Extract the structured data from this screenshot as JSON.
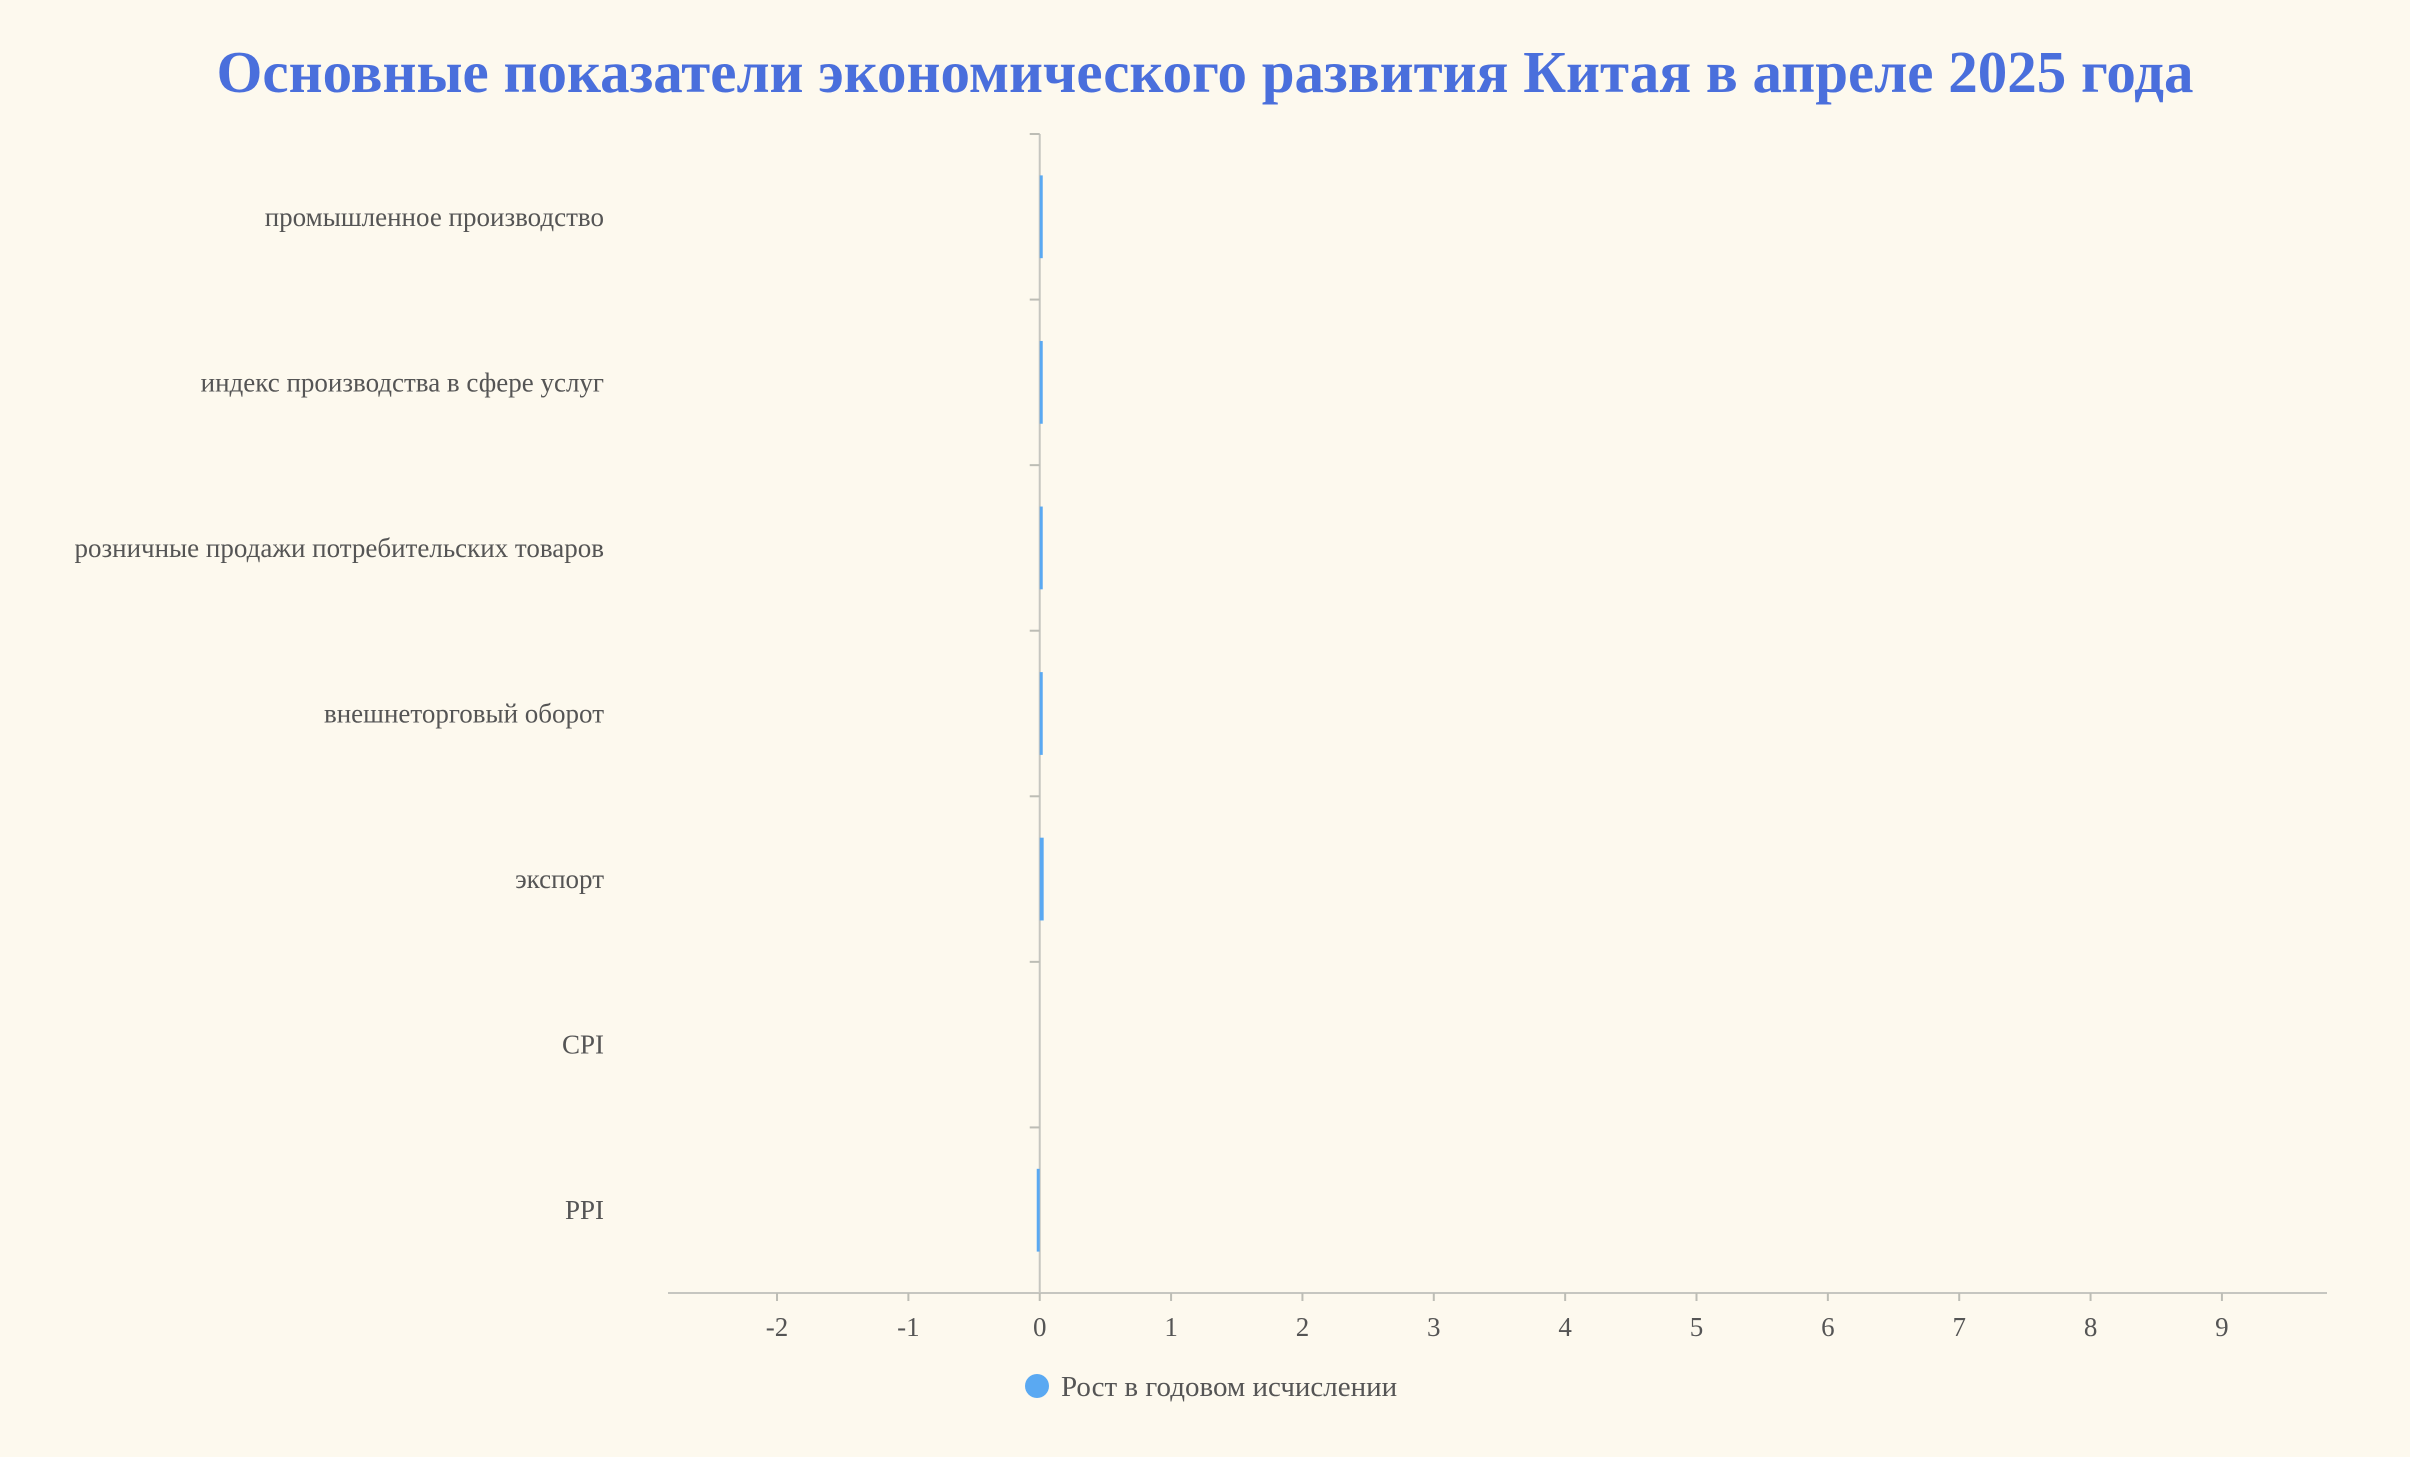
{
  "chart_data": {
    "type": "bar",
    "orientation": "horizontal",
    "title": "Основные показатели экономического развития Китая в апреле 2025 года",
    "categories": [
      "промышленное производство",
      "индекс производства в сфере услуг",
      "розничные продажи потребительских товаров",
      "внешнеторговый оборот",
      "экспорт",
      "CPI",
      "PPI"
    ],
    "series": [
      {
        "name": "Рост в годовом исчислении",
        "values": [
          0.02,
          0.02,
          0.015,
          0.015,
          0.03,
          0,
          -0.01
        ],
        "color": "#5aa9f2"
      }
    ],
    "x_ticks": [
      -2,
      -1,
      0,
      1,
      2,
      3,
      4,
      5,
      6,
      7,
      8,
      9
    ],
    "xlim": [
      -2.83,
      9.8
    ],
    "grid": false,
    "legend_position": "bottom"
  }
}
